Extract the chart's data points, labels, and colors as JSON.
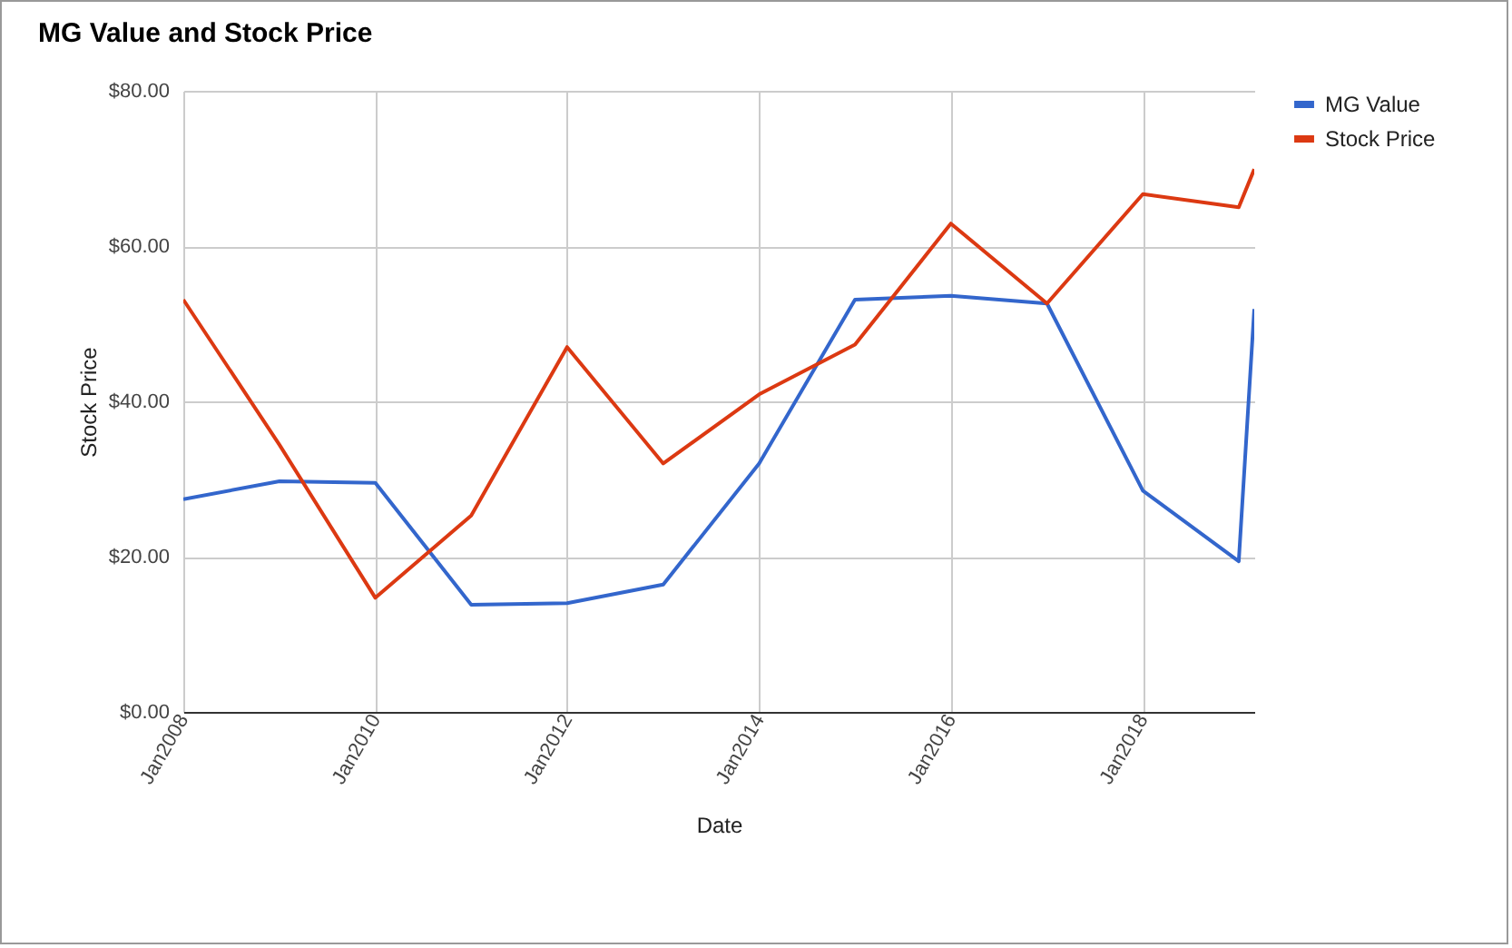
{
  "chart_data": {
    "type": "line",
    "title": "MG Value and Stock Price",
    "xlabel": "Date",
    "ylabel": "Stock Price",
    "x": [
      "2008-01",
      "2009-01",
      "2010-01",
      "2011-01",
      "2012-01",
      "2013-01",
      "2014-01",
      "2015-01",
      "2016-01",
      "2017-01",
      "2018-01",
      "2019-01",
      "2019-03"
    ],
    "series": [
      {
        "name": "MG Value",
        "color": "#3366cc",
        "values": [
          27.4,
          29.7,
          29.5,
          13.8,
          14.0,
          16.4,
          32.0,
          53.1,
          53.6,
          52.6,
          28.5,
          19.4,
          51.9
        ]
      },
      {
        "name": "Stock Price",
        "color": "#dc3912",
        "values": [
          53.1,
          34.4,
          14.7,
          25.3,
          47.0,
          32.0,
          40.9,
          47.3,
          62.9,
          52.6,
          66.7,
          65.0,
          69.9
        ]
      }
    ],
    "xlim": [
      "2008-01",
      "2019-03"
    ],
    "xticks": [
      {
        "value": "2008-01",
        "label": "Jan2008"
      },
      {
        "value": "2010-01",
        "label": "Jan2010"
      },
      {
        "value": "2012-01",
        "label": "Jan2012"
      },
      {
        "value": "2014-01",
        "label": "Jan2014"
      },
      {
        "value": "2016-01",
        "label": "Jan2016"
      },
      {
        "value": "2018-01",
        "label": "Jan2018"
      }
    ],
    "ylim": [
      0,
      80
    ],
    "yticks": [
      {
        "value": 0,
        "label": "$0.00"
      },
      {
        "value": 20,
        "label": "$20.00"
      },
      {
        "value": 40,
        "label": "$40.00"
      },
      {
        "value": 60,
        "label": "$60.00"
      },
      {
        "value": 80,
        "label": "$80.00"
      }
    ],
    "grid": true,
    "legend": "top right",
    "marker": "none",
    "line_style": "solid"
  }
}
